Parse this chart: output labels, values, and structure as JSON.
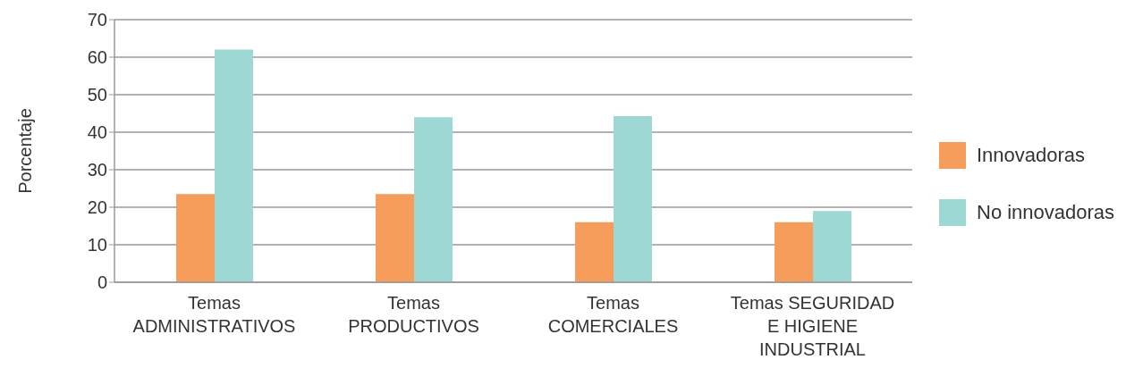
{
  "chart_data": {
    "type": "bar",
    "ylabel": "Porcentaje",
    "categories": [
      "Temas ADMINISTRATIVOS",
      "Temas PRODUCTIVOS",
      "Temas COMERCIALES",
      "Temas SEGURIDAD E HIGIENE INDUSTRIAL"
    ],
    "series": [
      {
        "name": "Innovadoras",
        "color": "#f79d5b",
        "values": [
          23.5,
          23.5,
          16,
          16
        ]
      },
      {
        "name": "No innovadoras",
        "color": "#9ed8d5",
        "values": [
          62,
          44,
          44.3,
          19
        ]
      }
    ],
    "ylim": [
      0,
      70
    ],
    "yticks": [
      0,
      10,
      20,
      30,
      40,
      50,
      60,
      70
    ],
    "grid": "y",
    "legend": "right"
  }
}
